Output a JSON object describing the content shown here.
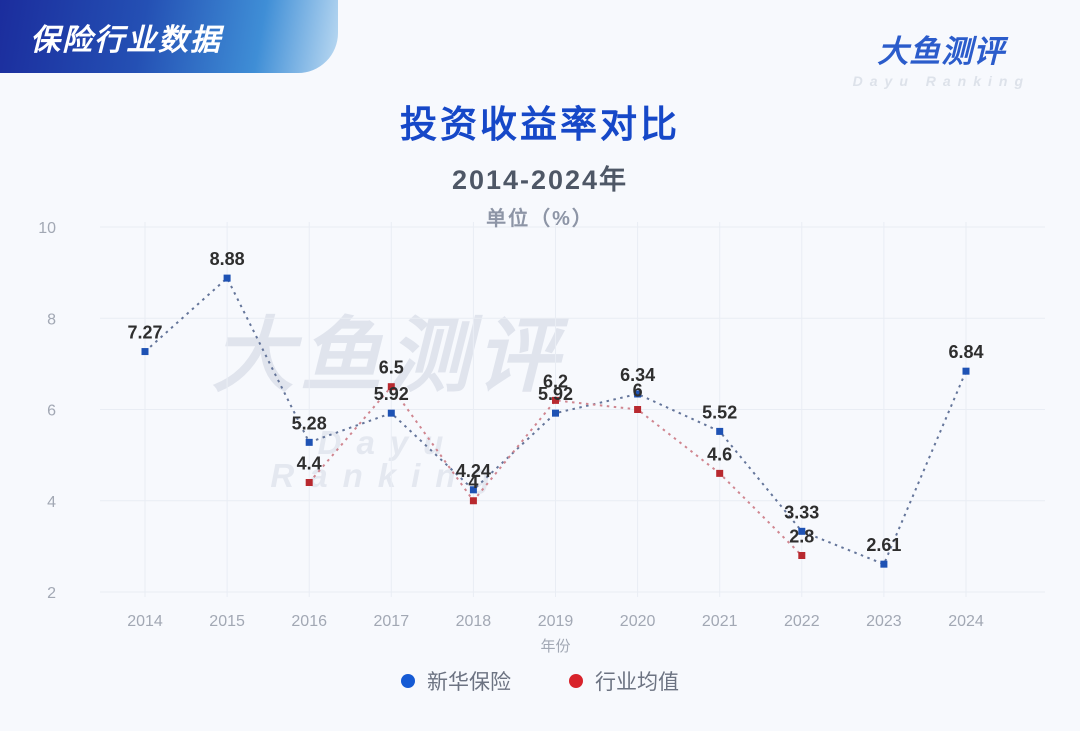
{
  "header": {
    "badge_text": "保险行业数据",
    "logo_text": "大鱼测评",
    "logo_subtext": "Dayu Ranking"
  },
  "watermark": {
    "text": "大鱼测评",
    "subtext": "Dayu Ranking"
  },
  "chart_data": {
    "type": "line",
    "title": "投资收益率对比",
    "subtitle": "2014-2024年",
    "unit_label": "单位（%）",
    "xlabel": "年份",
    "categories": [
      "2014",
      "2015",
      "2016",
      "2017",
      "2018",
      "2019",
      "2020",
      "2021",
      "2022",
      "2023",
      "2024"
    ],
    "series": [
      {
        "name": "新华保险",
        "legend_color": "#155ad4",
        "marker_color": "#1e52b4",
        "line_color": "#64759a",
        "values": [
          7.27,
          8.88,
          5.28,
          5.92,
          4.24,
          5.92,
          6.34,
          5.52,
          3.33,
          2.61,
          6.84
        ]
      },
      {
        "name": "行业均值",
        "legend_color": "#d8232b",
        "marker_color": "#b8292f",
        "line_color": "#d08690",
        "values": [
          null,
          null,
          4.4,
          6.5,
          4,
          6.2,
          6,
          4.6,
          2.8,
          null,
          null
        ]
      }
    ],
    "ylim": [
      2,
      10
    ],
    "yticks": [
      2,
      4,
      6,
      8,
      10
    ],
    "grid": true,
    "line_style": "dotted",
    "marker": "square",
    "legend_position": "bottom",
    "label_color": "#2e2e2e",
    "tick_color": "#a2a8b4",
    "grid_color": "#e9edf4"
  }
}
